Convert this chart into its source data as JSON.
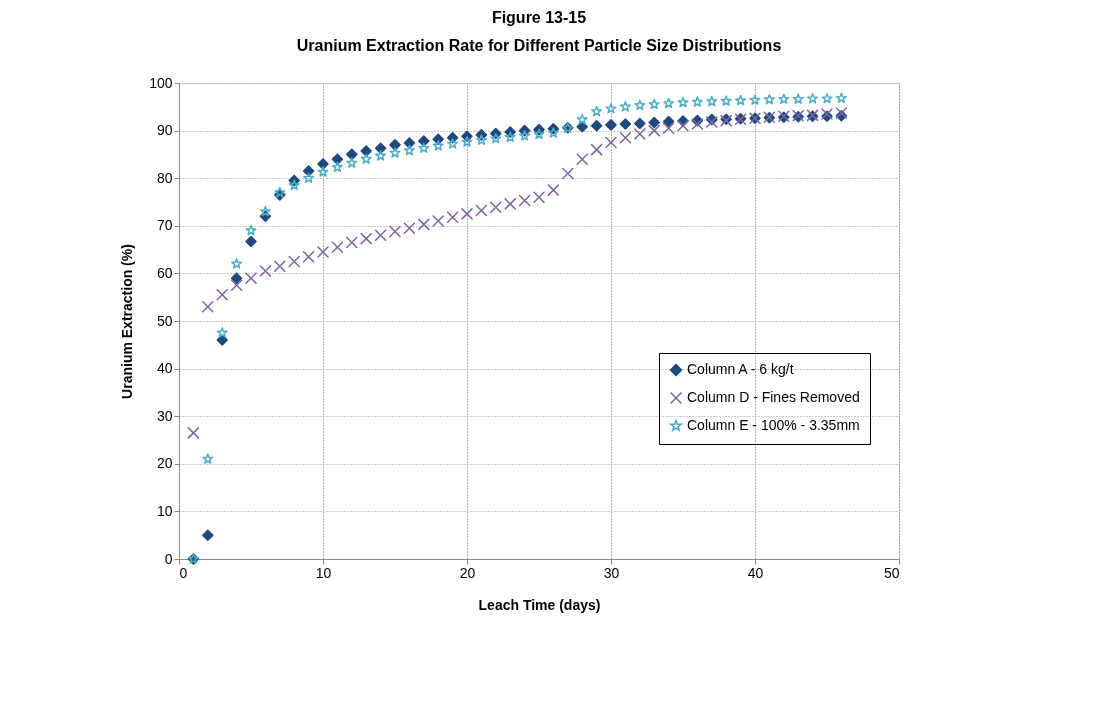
{
  "chart_data": {
    "type": "scatter",
    "title": "Figure 13-15",
    "subtitle": "Uranium Extraction Rate for Different Particle Size Distributions",
    "xlabel": "Leach Time (days)",
    "ylabel": "Uranium Extraction (%)",
    "x": [
      1,
      2,
      3,
      4,
      5,
      6,
      7,
      8,
      9,
      10,
      11,
      12,
      13,
      14,
      15,
      16,
      17,
      18,
      19,
      20,
      21,
      22,
      23,
      24,
      25,
      26,
      27,
      28,
      29,
      30,
      31,
      32,
      33,
      34,
      35,
      36,
      37,
      38,
      39,
      40,
      41,
      42,
      43,
      44,
      45,
      46
    ],
    "series": [
      {
        "name": "Column A - 6 kg/t",
        "color": "#1f497d",
        "marker": "diamond",
        "values": [
          0,
          5,
          46,
          59,
          66.7,
          72,
          76.5,
          79.5,
          81.5,
          83,
          84,
          85,
          85.7,
          86.3,
          87,
          87.4,
          87.8,
          88.2,
          88.5,
          88.8,
          89.1,
          89.4,
          89.7,
          90,
          90.2,
          90.4,
          90.6,
          90.8,
          91,
          91.2,
          91.4,
          91.5,
          91.7,
          91.9,
          92,
          92.1,
          92.3,
          92.4,
          92.5,
          92.6,
          92.7,
          92.8,
          92.9,
          93,
          93,
          93.1
        ]
      },
      {
        "name": "Column D - Fines Removed",
        "color": "#8064a2",
        "marker": "cross",
        "values": [
          26.5,
          53,
          55.5,
          57.5,
          59,
          60.5,
          61.5,
          62.5,
          63.5,
          64.5,
          65.5,
          66.5,
          67.3,
          68,
          68.8,
          69.5,
          70.3,
          71,
          71.8,
          72.5,
          73.2,
          73.9,
          74.6,
          75.3,
          76,
          77.5,
          81,
          84,
          86,
          87.5,
          88.5,
          89.3,
          90,
          90.5,
          91,
          91.4,
          91.8,
          92.1,
          92.4,
          92.6,
          92.8,
          93,
          93.1,
          93.2,
          93.5,
          93.7
        ]
      },
      {
        "name": "Column E - 100% - 3.35mm",
        "color": "#4bacc6",
        "marker": "star",
        "values": [
          0,
          21,
          47.5,
          62,
          69,
          73,
          77,
          78.5,
          80,
          81.3,
          82.3,
          83.2,
          84,
          84.7,
          85.3,
          85.8,
          86.3,
          86.8,
          87.2,
          87.6,
          88,
          88.3,
          88.6,
          88.9,
          89.2,
          89.5,
          90.5,
          92.3,
          94,
          94.6,
          95,
          95.3,
          95.5,
          95.7,
          95.9,
          96,
          96.1,
          96.2,
          96.3,
          96.4,
          96.5,
          96.6,
          96.6,
          96.7,
          96.7,
          96.8
        ]
      }
    ],
    "xlim": [
      0,
      50
    ],
    "xticks": [
      0,
      10,
      20,
      30,
      40,
      50
    ],
    "ylim": [
      0,
      100
    ],
    "yticks": [
      0,
      10,
      20,
      30,
      40,
      50,
      60,
      70,
      80,
      90,
      100
    ],
    "grid": true,
    "legend": "right"
  }
}
